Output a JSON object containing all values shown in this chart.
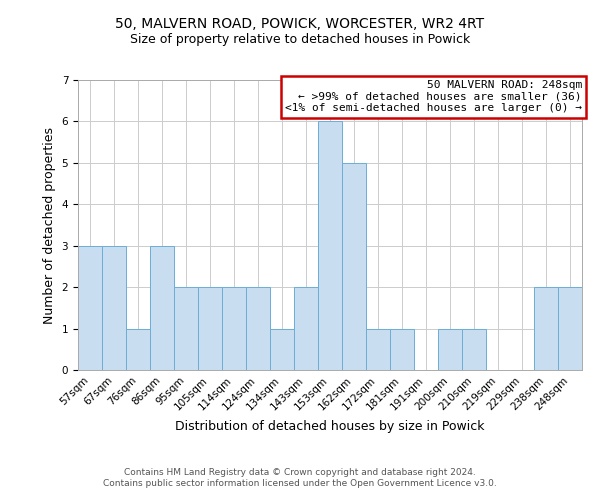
{
  "title": "50, MALVERN ROAD, POWICK, WORCESTER, WR2 4RT",
  "subtitle": "Size of property relative to detached houses in Powick",
  "xlabel": "Distribution of detached houses by size in Powick",
  "ylabel": "Number of detached properties",
  "categories": [
    "57sqm",
    "67sqm",
    "76sqm",
    "86sqm",
    "95sqm",
    "105sqm",
    "114sqm",
    "124sqm",
    "134sqm",
    "143sqm",
    "153sqm",
    "162sqm",
    "172sqm",
    "181sqm",
    "191sqm",
    "200sqm",
    "210sqm",
    "219sqm",
    "229sqm",
    "238sqm",
    "248sqm"
  ],
  "values": [
    3,
    3,
    1,
    3,
    2,
    2,
    2,
    2,
    1,
    2,
    6,
    5,
    1,
    1,
    0,
    1,
    1,
    0,
    0,
    2,
    2
  ],
  "bar_color": "#c8ddf0",
  "bar_edge_color": "#6baed6",
  "ylim": [
    0,
    7
  ],
  "yticks": [
    0,
    1,
    2,
    3,
    4,
    5,
    6,
    7
  ],
  "legend_title": "50 MALVERN ROAD: 248sqm",
  "legend_line1": "← >99% of detached houses are smaller (36)",
  "legend_line2": "<1% of semi-detached houses are larger (0) →",
  "legend_box_color": "#ffffff",
  "legend_box_edge_color": "#cc0000",
  "footer_line1": "Contains HM Land Registry data © Crown copyright and database right 2024.",
  "footer_line2": "Contains public sector information licensed under the Open Government Licence v3.0.",
  "background_color": "#ffffff",
  "grid_color": "#cccccc",
  "title_fontsize": 10,
  "subtitle_fontsize": 9,
  "axis_label_fontsize": 9,
  "tick_fontsize": 7.5,
  "legend_fontsize": 8,
  "footer_fontsize": 6.5
}
